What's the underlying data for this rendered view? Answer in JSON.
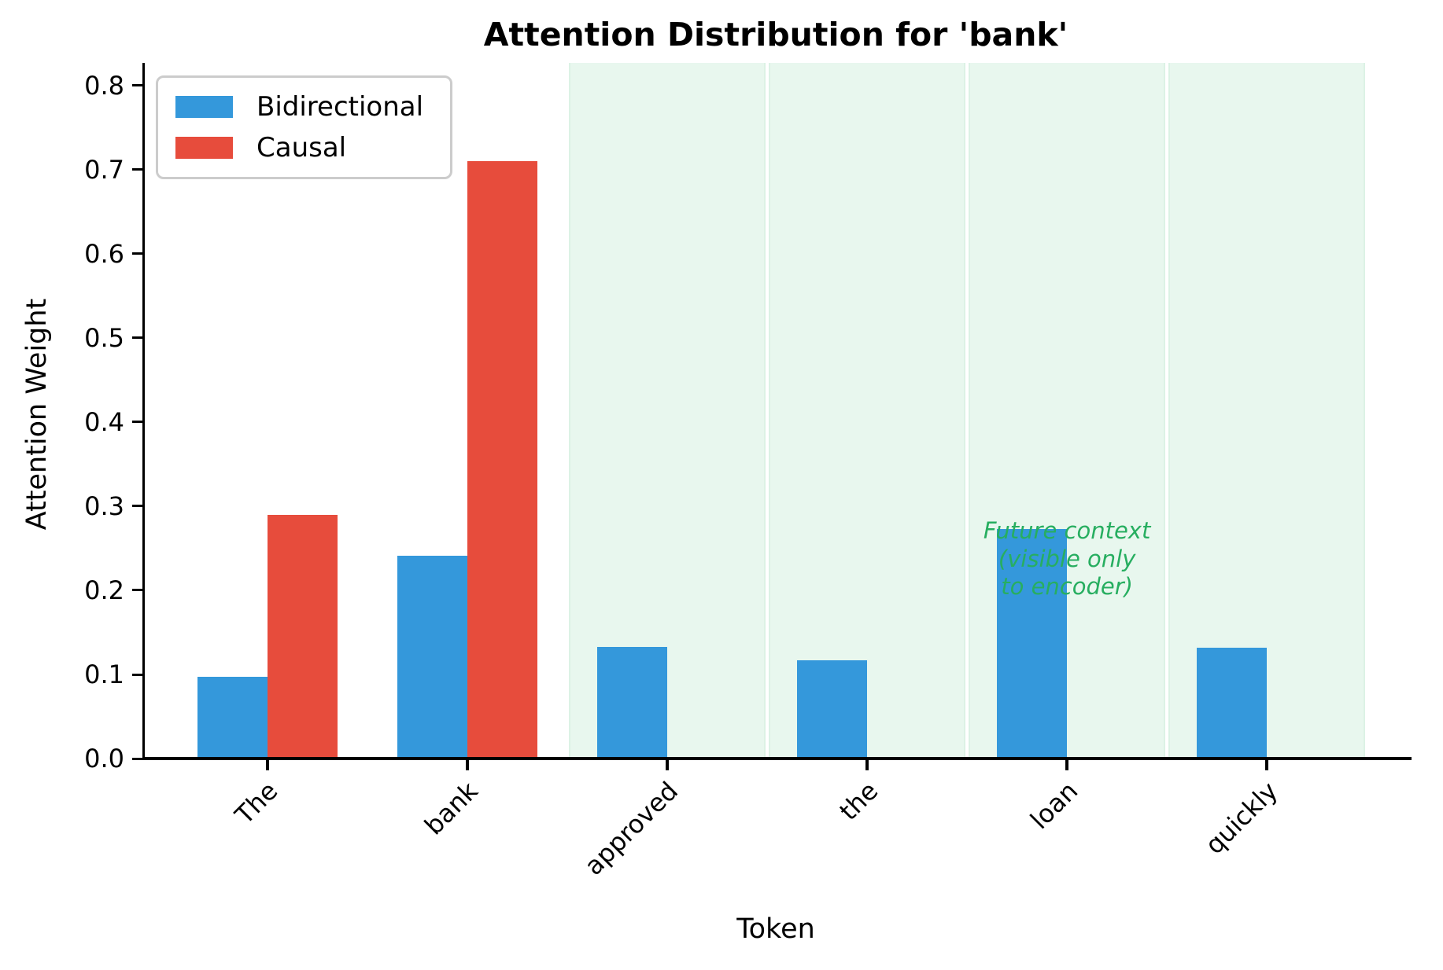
{
  "figure": {
    "title": "Attention Distribution for 'bank'",
    "x_axis_label": "Token",
    "y_axis_label": "Attention Weight"
  },
  "chart_data": {
    "type": "bar",
    "title": "Attention Distribution for 'bank'",
    "xlabel": "Token",
    "ylabel": "Attention Weight",
    "categories": [
      "The",
      "bank",
      "approved",
      "the",
      "loan",
      "quickly"
    ],
    "series": [
      {
        "name": "Bidirectional",
        "color": "#3498db",
        "values": [
          0.097,
          0.241,
          0.133,
          0.117,
          0.273,
          0.132
        ]
      },
      {
        "name": "Causal",
        "color": "#e74c3c",
        "values": [
          0.29,
          0.71,
          0,
          0,
          0,
          0
        ]
      }
    ],
    "ylim": [
      0,
      0.827
    ],
    "ytick_labels": [
      "0.0",
      "0.1",
      "0.2",
      "0.3",
      "0.4",
      "0.5",
      "0.6",
      "0.7",
      "0.8"
    ],
    "bar_width_units": 0.35,
    "grid": false,
    "legend_position": "upper left",
    "highlight_region": {
      "from_category": 2,
      "to_category": 5,
      "fill": "#e8f7ee",
      "edge": "#dcf2e5"
    },
    "annotation_lines": [
      "Future context",
      "(visible only",
      "to encoder)"
    ],
    "annotation_color": "#27ae60",
    "annotation_anchor": {
      "category": 4,
      "value_top": 0.287
    }
  }
}
